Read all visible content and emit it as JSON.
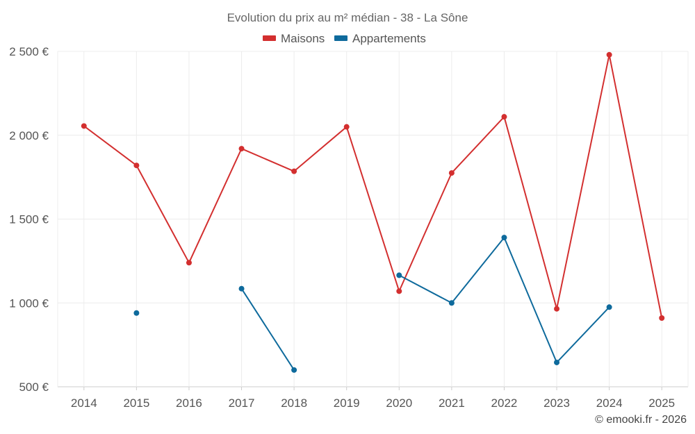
{
  "chart_data": {
    "type": "line",
    "title": "Evolution du prix au m² médian - 38 - La Sône",
    "categories": [
      "2014",
      "2015",
      "2016",
      "2017",
      "2018",
      "2019",
      "2020",
      "2021",
      "2022",
      "2023",
      "2024",
      "2025"
    ],
    "series": [
      {
        "name": "Maisons",
        "color": "#d32f2f",
        "values": [
          2055,
          1820,
          1240,
          1920,
          1785,
          2050,
          1070,
          1775,
          2110,
          965,
          2480,
          910
        ]
      },
      {
        "name": "Appartements",
        "color": "#0e6a9c",
        "values": [
          null,
          940,
          null,
          1085,
          600,
          null,
          1165,
          1000,
          1390,
          645,
          975,
          null
        ]
      }
    ],
    "ylim": [
      500,
      2500
    ],
    "yticks": [
      500,
      1000,
      1500,
      2000,
      2500
    ],
    "ytick_labels": [
      "500 €",
      "1 000 €",
      "1 500 €",
      "2 000 €",
      "2 500 €"
    ],
    "xlabel": "",
    "ylabel": "",
    "grid": true,
    "legend_position": "top-center"
  },
  "credit": "© emooki.fr - 2026"
}
